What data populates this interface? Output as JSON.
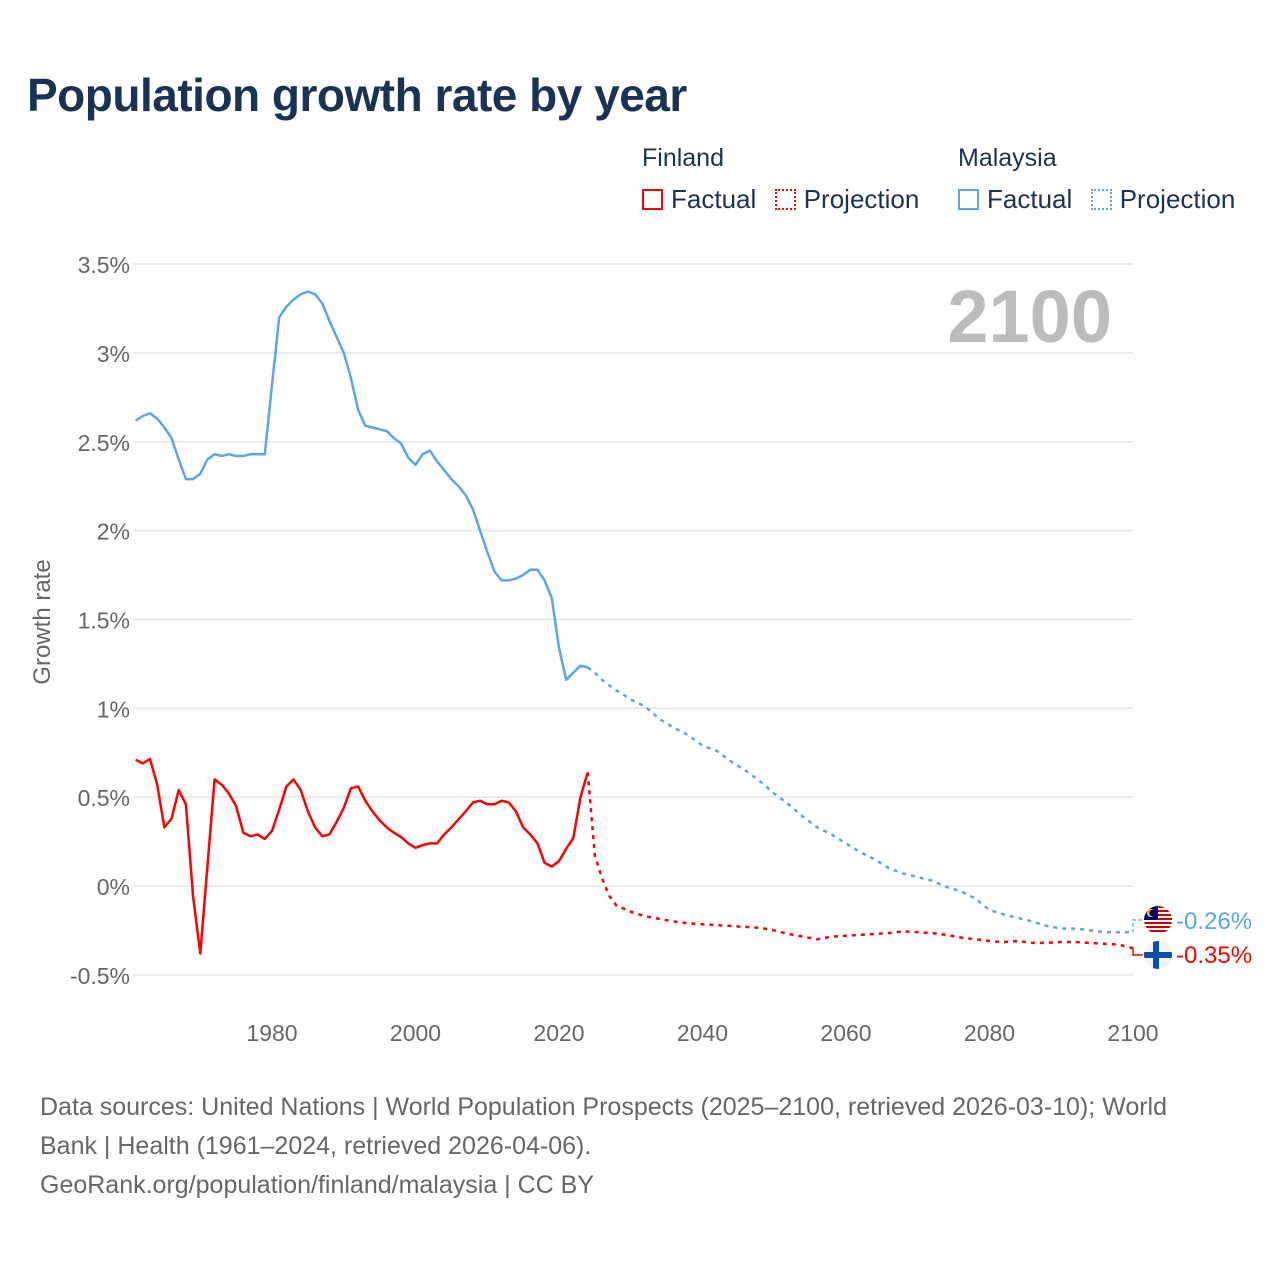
{
  "title": "Population growth rate by year",
  "legend": {
    "groups": [
      {
        "name": "Finland",
        "factual": "Factual",
        "projection": "Projection",
        "color": "#ff0000"
      },
      {
        "name": "Malaysia",
        "factual": "Factual",
        "projection": "Projection",
        "color": "#5aa5ec"
      }
    ]
  },
  "year_overlay": "2100",
  "end_labels": {
    "malaysia": "-0.26%",
    "finland": "-0.35%"
  },
  "sources": {
    "line1": "Data sources: United Nations | World Population Prospects (2025–2100, retrieved 2026-03-10); World",
    "line2": "Bank | Health (1961–2024, retrieved 2026-04-06).",
    "line3": "GeoRank.org/population/finland/malaysia | CC BY"
  },
  "chart_data": {
    "type": "line",
    "title": "Population growth rate by year",
    "xlabel": "",
    "ylabel": "Growth rate",
    "xlim": [
      1961,
      2100
    ],
    "ylim": [
      -0.6,
      3.5
    ],
    "x_ticks": [
      1980,
      2000,
      2020,
      2040,
      2060,
      2080,
      2100
    ],
    "y_ticks": [
      -0.5,
      0,
      0.5,
      1,
      1.5,
      2,
      2.5,
      3,
      3.5
    ],
    "y_tick_labels": [
      "-0.5%",
      "0%",
      "0.5%",
      "1%",
      "1.5%",
      "2%",
      "2.5%",
      "3%",
      "3.5%"
    ],
    "grid": true,
    "legend_position": "top-right",
    "series": [
      {
        "name": "Malaysia Factual",
        "color": "#5aa5ec",
        "style": "solid",
        "start_year": 1961,
        "values": [
          2.62,
          2.645,
          2.66,
          2.63,
          2.58,
          2.52,
          2.4,
          2.29,
          2.29,
          2.32,
          2.4,
          2.43,
          2.42,
          2.43,
          2.42,
          2.42,
          2.43,
          2.43,
          2.43,
          2.82,
          3.2,
          3.26,
          3.3,
          3.33,
          3.345,
          3.33,
          3.28,
          3.18,
          3.09,
          3.0,
          2.86,
          2.68,
          2.59,
          2.58,
          2.57,
          2.56,
          2.52,
          2.49,
          2.41,
          2.37,
          2.43,
          2.45,
          2.39,
          2.34,
          2.29,
          2.25,
          2.2,
          2.12,
          2.0,
          1.88,
          1.77,
          1.72,
          1.72,
          1.73,
          1.75,
          1.78,
          1.78,
          1.72,
          1.62,
          1.34,
          1.16,
          1.2,
          1.24,
          1.23
        ]
      },
      {
        "name": "Malaysia Projection",
        "color": "#5aa5ec",
        "style": "dotted",
        "points": [
          [
            2024,
            1.23
          ],
          [
            2025,
            1.2
          ],
          [
            2026,
            1.16
          ],
          [
            2028,
            1.1
          ],
          [
            2030,
            1.05
          ],
          [
            2032,
            1.01
          ],
          [
            2034,
            0.94
          ],
          [
            2036,
            0.89
          ],
          [
            2038,
            0.85
          ],
          [
            2040,
            0.79
          ],
          [
            2042,
            0.76
          ],
          [
            2044,
            0.7
          ],
          [
            2046,
            0.65
          ],
          [
            2048,
            0.59
          ],
          [
            2050,
            0.52
          ],
          [
            2052,
            0.46
          ],
          [
            2054,
            0.39
          ],
          [
            2056,
            0.33
          ],
          [
            2058,
            0.29
          ],
          [
            2060,
            0.24
          ],
          [
            2062,
            0.19
          ],
          [
            2064,
            0.15
          ],
          [
            2066,
            0.1
          ],
          [
            2068,
            0.07
          ],
          [
            2070,
            0.05
          ],
          [
            2072,
            0.03
          ],
          [
            2074,
            -0.005
          ],
          [
            2076,
            -0.03
          ],
          [
            2078,
            -0.07
          ],
          [
            2080,
            -0.135
          ],
          [
            2082,
            -0.16
          ],
          [
            2084,
            -0.18
          ],
          [
            2086,
            -0.2
          ],
          [
            2088,
            -0.225
          ],
          [
            2090,
            -0.24
          ],
          [
            2092,
            -0.24
          ],
          [
            2094,
            -0.25
          ],
          [
            2096,
            -0.26
          ],
          [
            2098,
            -0.26
          ],
          [
            2100,
            -0.26
          ]
        ]
      },
      {
        "name": "Finland Factual",
        "color": "#ff0000",
        "style": "solid",
        "start_year": 1961,
        "values": [
          0.71,
          0.69,
          0.715,
          0.57,
          0.33,
          0.38,
          0.54,
          0.46,
          -0.06,
          -0.38,
          0.11,
          0.6,
          0.57,
          0.52,
          0.45,
          0.3,
          0.28,
          0.29,
          0.265,
          0.31,
          0.43,
          0.56,
          0.6,
          0.54,
          0.42,
          0.33,
          0.28,
          0.29,
          0.36,
          0.44,
          0.55,
          0.56,
          0.48,
          0.42,
          0.37,
          0.33,
          0.3,
          0.275,
          0.24,
          0.215,
          0.23,
          0.24,
          0.24,
          0.29,
          0.33,
          0.375,
          0.42,
          0.47,
          0.48,
          0.46,
          0.46,
          0.48,
          0.47,
          0.42,
          0.33,
          0.29,
          0.24,
          0.13,
          0.11,
          0.14,
          0.21,
          0.27,
          0.5,
          0.64
        ]
      },
      {
        "name": "Finland Projection",
        "color": "#ff0000",
        "style": "dotted",
        "points": [
          [
            2024,
            0.64
          ],
          [
            2025,
            0.17
          ],
          [
            2026,
            0.045
          ],
          [
            2027,
            -0.055
          ],
          [
            2028,
            -0.11
          ],
          [
            2030,
            -0.145
          ],
          [
            2032,
            -0.17
          ],
          [
            2034,
            -0.185
          ],
          [
            2036,
            -0.2
          ],
          [
            2038,
            -0.21
          ],
          [
            2040,
            -0.215
          ],
          [
            2042,
            -0.22
          ],
          [
            2044,
            -0.225
          ],
          [
            2046,
            -0.23
          ],
          [
            2048,
            -0.235
          ],
          [
            2050,
            -0.25
          ],
          [
            2052,
            -0.27
          ],
          [
            2054,
            -0.285
          ],
          [
            2056,
            -0.3
          ],
          [
            2058,
            -0.285
          ],
          [
            2060,
            -0.28
          ],
          [
            2062,
            -0.275
          ],
          [
            2064,
            -0.27
          ],
          [
            2066,
            -0.265
          ],
          [
            2068,
            -0.255
          ],
          [
            2070,
            -0.26
          ],
          [
            2072,
            -0.265
          ],
          [
            2074,
            -0.275
          ],
          [
            2076,
            -0.29
          ],
          [
            2078,
            -0.3
          ],
          [
            2080,
            -0.31
          ],
          [
            2082,
            -0.315
          ],
          [
            2084,
            -0.31
          ],
          [
            2086,
            -0.32
          ],
          [
            2088,
            -0.32
          ],
          [
            2090,
            -0.315
          ],
          [
            2092,
            -0.315
          ],
          [
            2094,
            -0.32
          ],
          [
            2096,
            -0.325
          ],
          [
            2098,
            -0.33
          ],
          [
            2100,
            -0.35
          ]
        ]
      }
    ]
  }
}
